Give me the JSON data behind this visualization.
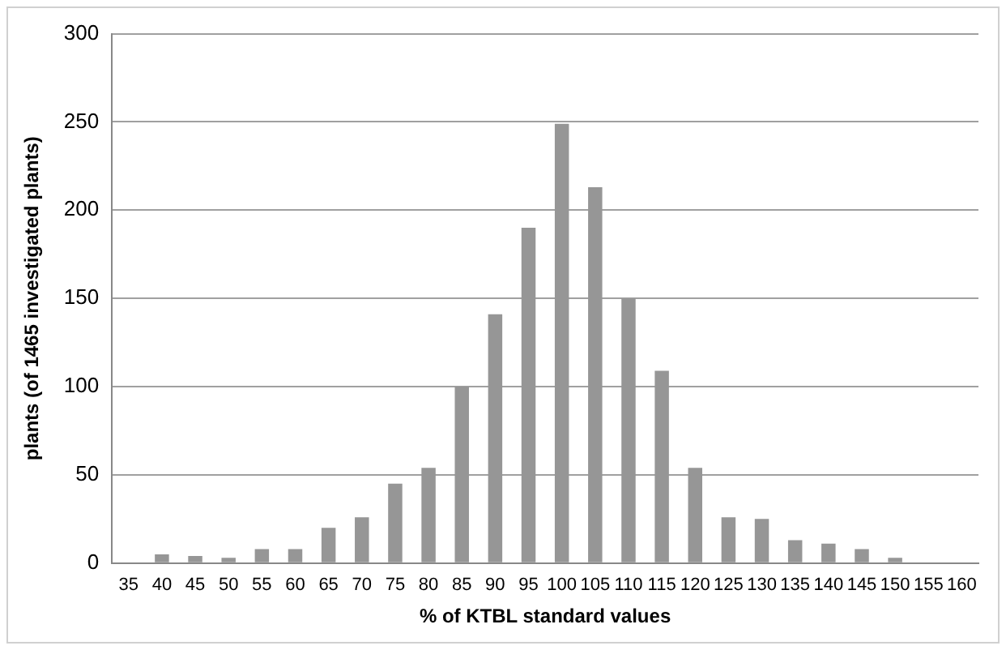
{
  "chart_data": {
    "type": "bar",
    "xlabel": "% of KTBL standard values",
    "ylabel": "plants (of 1465 investigated plants)",
    "categories": [
      "35",
      "40",
      "45",
      "50",
      "55",
      "60",
      "65",
      "70",
      "75",
      "80",
      "85",
      "90",
      "95",
      "100",
      "105",
      "110",
      "115",
      "120",
      "125",
      "130",
      "135",
      "140",
      "145",
      "150",
      "155",
      "160"
    ],
    "values": [
      0.5,
      5,
      4,
      3,
      8,
      8,
      20,
      26,
      45,
      54,
      100,
      141,
      190,
      249,
      213,
      150,
      109,
      54,
      26,
      25,
      13,
      11,
      8,
      3,
      0.5,
      0.5
    ],
    "color": "#969696",
    "ylim": [
      0,
      300
    ],
    "yticks": [
      0,
      50,
      100,
      150,
      200,
      250,
      300
    ],
    "grid": "y",
    "legend": false
  }
}
